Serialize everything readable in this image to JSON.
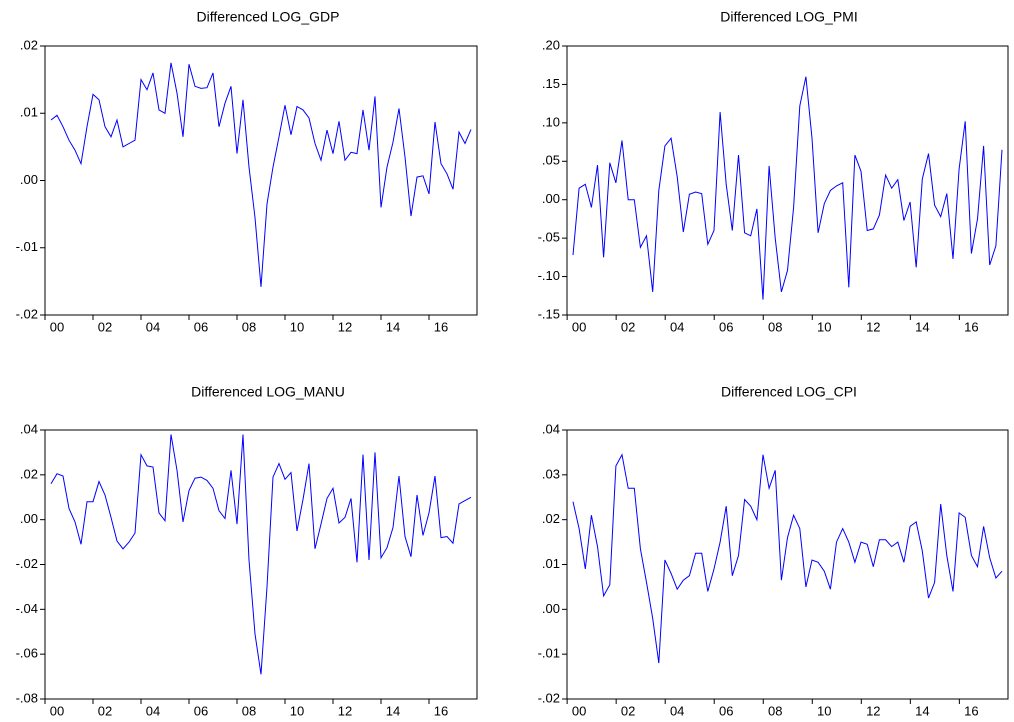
{
  "chart_data": [
    {
      "type": "line",
      "title": "Differenced LOG_GDP",
      "categories": [
        null,
        "00",
        null,
        null,
        null,
        null,
        null,
        null,
        null,
        "02",
        null,
        null,
        null,
        null,
        null,
        null,
        null,
        "04",
        null,
        null,
        null,
        null,
        null,
        null,
        null,
        "06",
        null,
        null,
        null,
        null,
        null,
        null,
        null,
        "08",
        null,
        null,
        null,
        null,
        null,
        null,
        null,
        "10",
        null,
        null,
        null,
        null,
        null,
        null,
        null,
        "12",
        null,
        null,
        null,
        null,
        null,
        null,
        null,
        "14",
        null,
        null,
        null,
        null,
        null,
        null,
        null,
        "16",
        null,
        null,
        null,
        null,
        null
      ],
      "values": [
        0.009,
        0.0097,
        0.008,
        0.006,
        0.0045,
        0.0025,
        0.008,
        0.0128,
        0.012,
        0.008,
        0.0065,
        0.009,
        0.005,
        0.0055,
        0.006,
        0.015,
        0.0135,
        0.016,
        0.0105,
        0.01,
        0.0175,
        0.013,
        0.0065,
        0.0173,
        0.014,
        0.0137,
        0.0138,
        0.016,
        0.008,
        0.0115,
        0.014,
        0.004,
        0.012,
        0.002,
        -0.0055,
        -0.0158,
        -0.0035,
        0.002,
        0.0065,
        0.0112,
        0.0068,
        0.011,
        0.0105,
        0.0093,
        0.0055,
        0.003,
        0.0075,
        0.004,
        0.0088,
        0.003,
        0.0042,
        0.004,
        0.0105,
        0.0045,
        0.0125,
        -0.004,
        0.002,
        0.0057,
        0.0107,
        0.0035,
        -0.0053,
        0.0005,
        0.0007,
        -0.002,
        0.0087,
        0.0025,
        0.001,
        -0.0013,
        0.0072,
        0.0055,
        0.0076
      ],
      "color": "#0000ff",
      "ylim": [
        -0.02,
        0.02
      ],
      "yticks": [
        {
          "value": -0.02,
          "label": "-.02"
        },
        {
          "value": -0.01,
          "label": "-.01"
        },
        {
          "value": 0,
          "label": ".00"
        },
        {
          "value": 0.01,
          "label": ".01"
        },
        {
          "value": 0.02,
          "label": ".02"
        }
      ]
    },
    {
      "type": "line",
      "title": "Differenced LOG_PMI",
      "categories": [
        null,
        "00",
        null,
        null,
        null,
        null,
        null,
        null,
        null,
        "02",
        null,
        null,
        null,
        null,
        null,
        null,
        null,
        "04",
        null,
        null,
        null,
        null,
        null,
        null,
        null,
        "06",
        null,
        null,
        null,
        null,
        null,
        null,
        null,
        "08",
        null,
        null,
        null,
        null,
        null,
        null,
        null,
        "10",
        null,
        null,
        null,
        null,
        null,
        null,
        null,
        "12",
        null,
        null,
        null,
        null,
        null,
        null,
        null,
        "14",
        null,
        null,
        null,
        null,
        null,
        null,
        null,
        "16",
        null,
        null,
        null,
        null,
        null
      ],
      "values": [
        -0.072,
        0.015,
        0.02,
        -0.01,
        0.045,
        -0.075,
        0.048,
        0.022,
        0.077,
        0,
        0,
        -0.062,
        -0.047,
        -0.12,
        0.012,
        0.07,
        0.08,
        0.03,
        -0.042,
        0.007,
        0.01,
        0.008,
        -0.058,
        -0.04,
        0.114,
        0.02,
        -0.04,
        0.058,
        -0.043,
        -0.047,
        -0.012,
        -0.13,
        0.044,
        -0.05,
        -0.12,
        -0.092,
        -0.01,
        0.122,
        0.16,
        0.08,
        -0.043,
        -0.005,
        0.012,
        0.018,
        0.022,
        -0.114,
        0.058,
        0.037,
        -0.04,
        -0.038,
        -0.02,
        0.032,
        0.015,
        0.026,
        -0.027,
        -0.003,
        -0.088,
        0.027,
        0.06,
        -0.007,
        -0.022,
        0.008,
        -0.077,
        0.04,
        0.102,
        -0.07,
        -0.025,
        0.07,
        -0.085,
        -0.06,
        0.065
      ],
      "color": "#0000ff",
      "ylim": [
        -0.15,
        0.2
      ],
      "yticks": [
        {
          "value": -0.15,
          "label": "-.15"
        },
        {
          "value": -0.1,
          "label": "-.10"
        },
        {
          "value": -0.05,
          "label": "-.05"
        },
        {
          "value": 0,
          "label": ".00"
        },
        {
          "value": 0.05,
          "label": ".05"
        },
        {
          "value": 0.1,
          "label": ".10"
        },
        {
          "value": 0.15,
          "label": ".15"
        },
        {
          "value": 0.2,
          "label": ".20"
        }
      ]
    },
    {
      "type": "line",
      "title": "Differenced LOG_MANU",
      "categories": [
        null,
        "00",
        null,
        null,
        null,
        null,
        null,
        null,
        null,
        "02",
        null,
        null,
        null,
        null,
        null,
        null,
        null,
        "04",
        null,
        null,
        null,
        null,
        null,
        null,
        null,
        "06",
        null,
        null,
        null,
        null,
        null,
        null,
        null,
        "08",
        null,
        null,
        null,
        null,
        null,
        null,
        null,
        "10",
        null,
        null,
        null,
        null,
        null,
        null,
        null,
        "12",
        null,
        null,
        null,
        null,
        null,
        null,
        null,
        "14",
        null,
        null,
        null,
        null,
        null,
        null,
        null,
        "16",
        null,
        null,
        null,
        null,
        null
      ],
      "values": [
        0.016,
        0.0205,
        0.0195,
        0.005,
        -0.001,
        -0.011,
        0.008,
        0.008,
        0.017,
        0.011,
        0.001,
        -0.0095,
        -0.013,
        -0.01,
        -0.006,
        0.029,
        0.024,
        0.0235,
        0.003,
        -0.0005,
        0.038,
        0.022,
        -0.001,
        0.013,
        0.0185,
        0.019,
        0.0175,
        0.014,
        0.004,
        0.0005,
        0.022,
        -0.002,
        0.038,
        -0.018,
        -0.051,
        -0.069,
        -0.03,
        0.019,
        0.025,
        0.018,
        0.021,
        -0.005,
        0.009,
        0.025,
        -0.013,
        -0.002,
        0.0095,
        0.014,
        -0.0015,
        0.001,
        0.0095,
        -0.019,
        0.029,
        -0.018,
        0.03,
        -0.017,
        -0.0125,
        -0.0035,
        0.0195,
        -0.0075,
        -0.0165,
        0.011,
        -0.007,
        0.003,
        0.0195,
        -0.008,
        -0.0075,
        -0.0105,
        0.007,
        0.0085,
        0.01
      ],
      "color": "#0000ff",
      "ylim": [
        -0.08,
        0.04
      ],
      "yticks": [
        {
          "value": -0.08,
          "label": "-.08"
        },
        {
          "value": -0.06,
          "label": "-.06"
        },
        {
          "value": -0.04,
          "label": "-.04"
        },
        {
          "value": -0.02,
          "label": "-.02"
        },
        {
          "value": 0,
          "label": ".00"
        },
        {
          "value": 0.02,
          "label": ".02"
        },
        {
          "value": 0.04,
          "label": ".04"
        }
      ]
    },
    {
      "type": "line",
      "title": "Differenced LOG_CPI",
      "categories": [
        null,
        "00",
        null,
        null,
        null,
        null,
        null,
        null,
        null,
        "02",
        null,
        null,
        null,
        null,
        null,
        null,
        null,
        "04",
        null,
        null,
        null,
        null,
        null,
        null,
        null,
        "06",
        null,
        null,
        null,
        null,
        null,
        null,
        null,
        "08",
        null,
        null,
        null,
        null,
        null,
        null,
        null,
        "10",
        null,
        null,
        null,
        null,
        null,
        null,
        null,
        "12",
        null,
        null,
        null,
        null,
        null,
        null,
        null,
        "14",
        null,
        null,
        null,
        null,
        null,
        null,
        null,
        "16",
        null,
        null,
        null,
        null,
        null
      ],
      "values": [
        0.024,
        0.018,
        0.009,
        0.021,
        0.014,
        0.003,
        0.0055,
        0.032,
        0.0345,
        0.027,
        0.027,
        0.0135,
        0.006,
        -0.002,
        -0.012,
        0.011,
        0.008,
        0.0045,
        0.0065,
        0.0075,
        0.0125,
        0.0125,
        0.004,
        0.009,
        0.015,
        0.023,
        0.0075,
        0.012,
        0.0245,
        0.023,
        0.02,
        0.0345,
        0.027,
        0.031,
        0.0065,
        0.016,
        0.021,
        0.018,
        0.005,
        0.011,
        0.0105,
        0.0085,
        0.0045,
        0.015,
        0.018,
        0.015,
        0.0105,
        0.015,
        0.0145,
        0.0095,
        0.0155,
        0.0155,
        0.014,
        0.015,
        0.0105,
        0.0185,
        0.0195,
        0.013,
        0.0025,
        0.006,
        0.0235,
        0.012,
        0.004,
        0.0215,
        0.0205,
        0.012,
        0.0095,
        0.0185,
        0.0115,
        0.007,
        0.0085
      ],
      "color": "#0000ff",
      "ylim": [
        -0.02,
        0.04
      ],
      "yticks": [
        {
          "value": -0.02,
          "label": "-.02"
        },
        {
          "value": -0.01,
          "label": "-.01"
        },
        {
          "value": 0,
          "label": ".00"
        },
        {
          "value": 0.01,
          "label": ".01"
        },
        {
          "value": 0.02,
          "label": ".02"
        },
        {
          "value": 0.03,
          "label": ".03"
        },
        {
          "value": 0.04,
          "label": ".04"
        }
      ]
    }
  ]
}
